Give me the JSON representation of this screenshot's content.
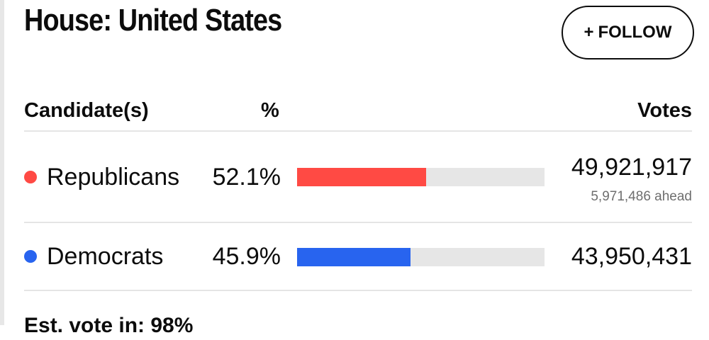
{
  "header": {
    "title": "House: United States",
    "follow_plus": "+",
    "follow_label": "FOLLOW"
  },
  "table": {
    "columns": {
      "candidate": "Candidate(s)",
      "percent": "%",
      "votes": "Votes"
    },
    "rows": [
      {
        "party": "Republicans",
        "percent_text": "52.1%",
        "percent": 52.1,
        "color": "#ff4a44",
        "votes": "49,921,917",
        "lead_text": "5,971,486 ahead"
      },
      {
        "party": "Democrats",
        "percent_text": "45.9%",
        "percent": 45.9,
        "color": "#2864ef",
        "votes": "43,950,431"
      }
    ]
  },
  "footer": {
    "est_vote": "Est. vote in: 98%"
  }
}
